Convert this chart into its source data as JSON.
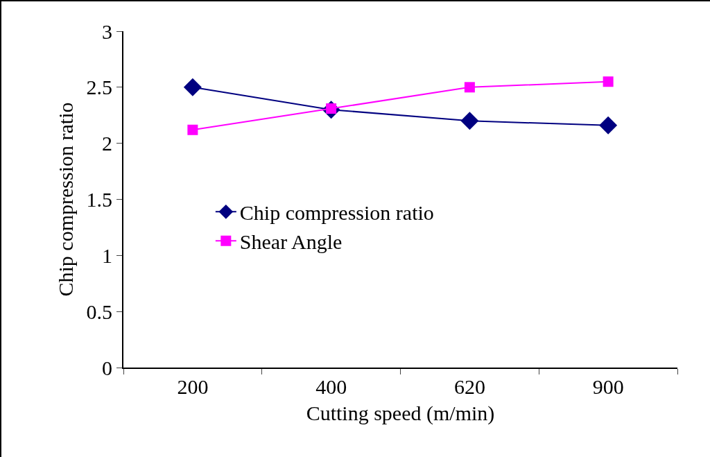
{
  "chart_data": {
    "type": "line",
    "xlabel": "Cutting speed (m/min)",
    "ylabel": "Chip compression ratio",
    "categories": [
      "200",
      "400",
      "620",
      "900"
    ],
    "series": [
      {
        "name": "Chip compression ratio",
        "color": "#000080",
        "marker": "diamond",
        "values": [
          2.5,
          2.3,
          2.2,
          2.16
        ]
      },
      {
        "name": "Shear Angle",
        "color": "#ff00ff",
        "marker": "square",
        "values": [
          2.12,
          2.31,
          2.5,
          2.55
        ]
      }
    ],
    "ylim": [
      0,
      3
    ],
    "yticks": [
      0,
      0.5,
      1,
      1.5,
      2,
      2.5,
      3
    ],
    "grid": false,
    "legend": "center left"
  }
}
